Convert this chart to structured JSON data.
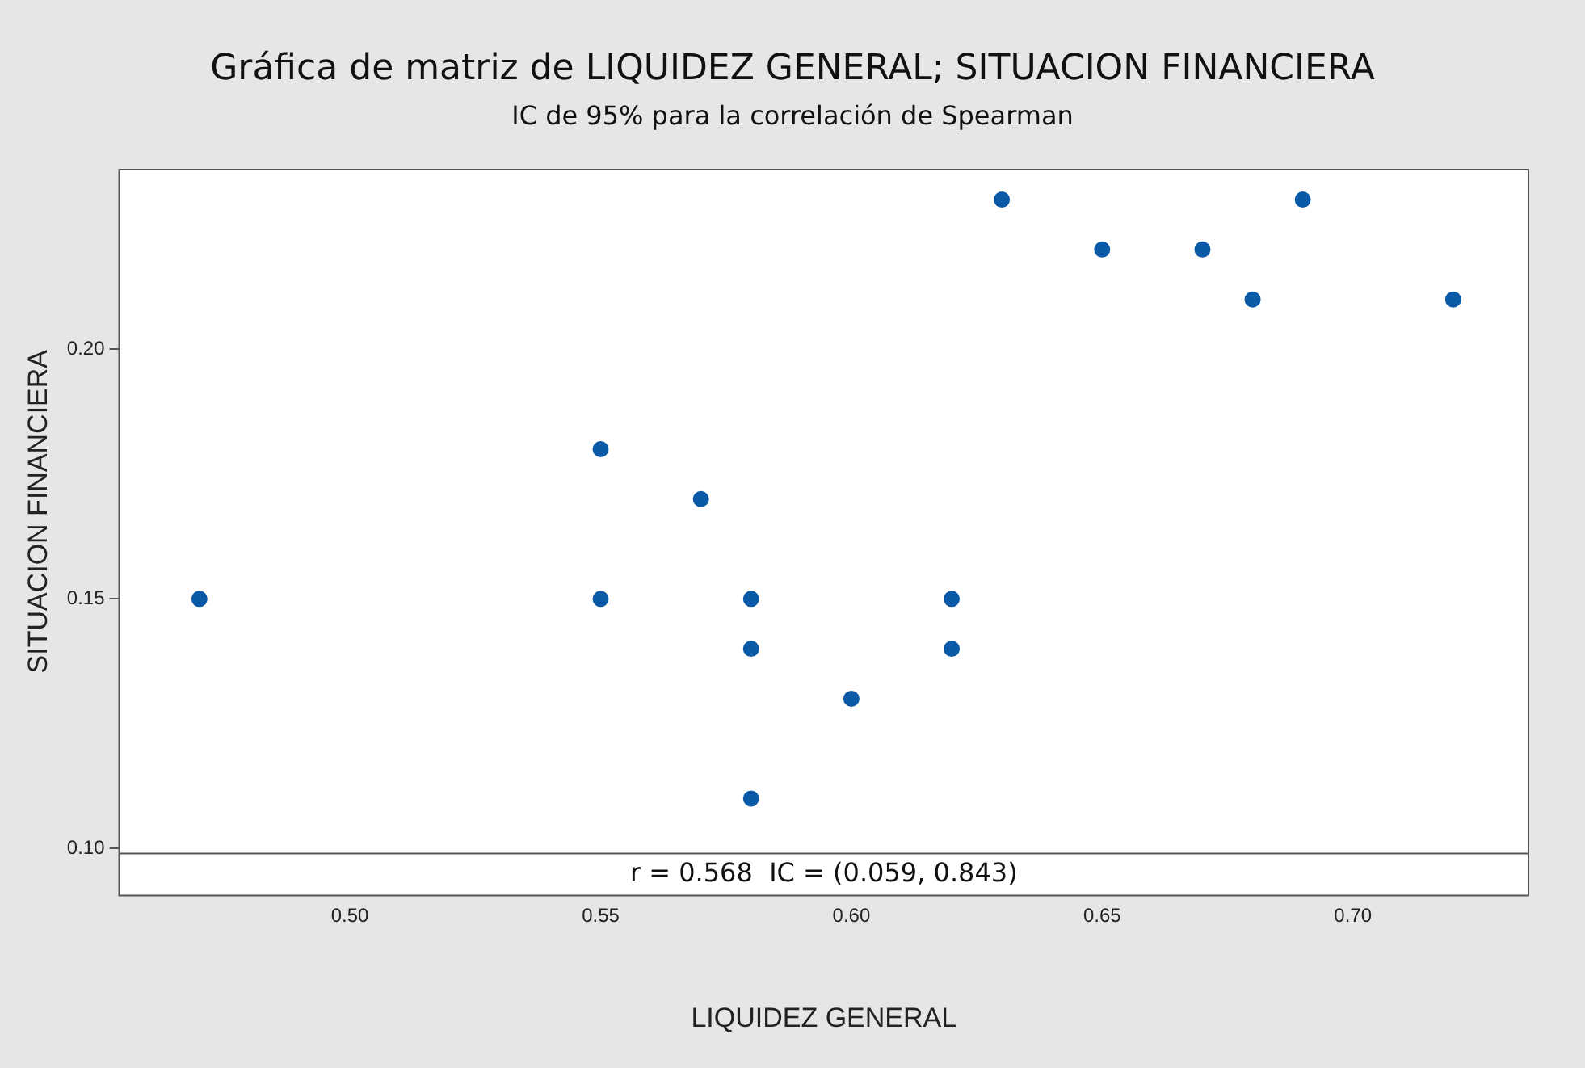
{
  "chart_data": {
    "type": "scatter",
    "title": "Gráfica de matriz de LIQUIDEZ GENERAL; SITUACION FINANCIERA",
    "subtitle": "IC de 95% para la correlación de Spearman",
    "xlabel": "LIQUIDEZ GENERAL",
    "ylabel": "SITUACION FINANCIERA",
    "annotations": [
      "r = 0.568  IC = (0.059, 0.843)"
    ],
    "x": [
      0.47,
      0.55,
      0.55,
      0.57,
      0.58,
      0.58,
      0.58,
      0.6,
      0.62,
      0.62,
      0.63,
      0.65,
      0.67,
      0.68,
      0.69,
      0.72
    ],
    "series": [
      {
        "color": "#0b5aa8",
        "values": [
          0.15,
          0.18,
          0.15,
          0.17,
          0.15,
          0.14,
          0.11,
          0.13,
          0.15,
          0.14,
          0.23,
          0.22,
          0.22,
          0.21,
          0.23,
          0.21
        ]
      }
    ],
    "xlim": [
      0.454,
      0.735
    ],
    "ylim": [
      0.099,
      0.236
    ],
    "xticks": [
      {
        "value": 0.5,
        "label": "0.50"
      },
      {
        "value": 0.55,
        "label": "0.55"
      },
      {
        "value": 0.6,
        "label": "0.60"
      },
      {
        "value": 0.65,
        "label": "0.65"
      },
      {
        "value": 0.7,
        "label": "0.70"
      }
    ],
    "yticks": [
      {
        "value": 0.1,
        "label": "0.10"
      },
      {
        "value": 0.15,
        "label": "0.15"
      },
      {
        "value": 0.2,
        "label": "0.20"
      }
    ],
    "marker": "circle",
    "grid": false,
    "legend": false
  }
}
